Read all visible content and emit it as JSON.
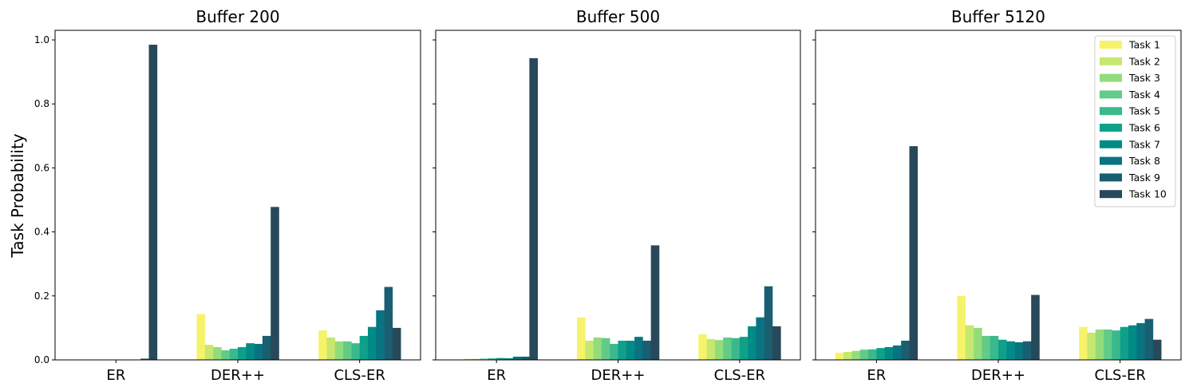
{
  "figure": {
    "ylabel": "Task Probability",
    "legend": {
      "placement": "upper-right of Buffer 5120 panel",
      "entries": [
        "Task 1",
        "Task 2",
        "Task 3",
        "Task 4",
        "Task 5",
        "Task 6",
        "Task 7",
        "Task 8",
        "Task 9",
        "Task 10"
      ]
    },
    "colors": [
      "#f6f36a",
      "#c6e86e",
      "#93dc7b",
      "#62cb87",
      "#3ab98c",
      "#0fa08a",
      "#008b86",
      "#097381",
      "#195e71",
      "#27495a"
    ]
  },
  "chart_data": [
    {
      "type": "bar",
      "title": "Buffer 200",
      "categories": [
        "ER",
        "DER++",
        "CLS-ER"
      ],
      "ylabel": "Task Probability",
      "ylim": [
        0,
        1.03
      ],
      "yticks": [
        "0.0",
        "0.2",
        "0.4",
        "0.6",
        "0.8",
        "1.0"
      ],
      "series": [
        {
          "name": "Task 1",
          "values": [
            0.0,
            0.143,
            0.092
          ]
        },
        {
          "name": "Task 2",
          "values": [
            0.0,
            0.047,
            0.07
          ]
        },
        {
          "name": "Task 3",
          "values": [
            0.0,
            0.04,
            0.058
          ]
        },
        {
          "name": "Task 4",
          "values": [
            0.0,
            0.03,
            0.058
          ]
        },
        {
          "name": "Task 5",
          "values": [
            0.0,
            0.035,
            0.052
          ]
        },
        {
          "name": "Task 6",
          "values": [
            0.0,
            0.04,
            0.075
          ]
        },
        {
          "name": "Task 7",
          "values": [
            0.0,
            0.052,
            0.103
          ]
        },
        {
          "name": "Task 8",
          "values": [
            0.0,
            0.05,
            0.155
          ]
        },
        {
          "name": "Task 9",
          "values": [
            0.004,
            0.075,
            0.228
          ]
        },
        {
          "name": "Task 10",
          "values": [
            0.985,
            0.478,
            0.1
          ]
        }
      ]
    },
    {
      "type": "bar",
      "title": "Buffer 500",
      "categories": [
        "ER",
        "DER++",
        "CLS-ER"
      ],
      "ylim": [
        0,
        1.03
      ],
      "series": [
        {
          "name": "Task 1",
          "values": [
            0.001,
            0.133,
            0.08
          ]
        },
        {
          "name": "Task 2",
          "values": [
            0.003,
            0.06,
            0.065
          ]
        },
        {
          "name": "Task 3",
          "values": [
            0.003,
            0.07,
            0.062
          ]
        },
        {
          "name": "Task 4",
          "values": [
            0.004,
            0.068,
            0.07
          ]
        },
        {
          "name": "Task 5",
          "values": [
            0.005,
            0.05,
            0.068
          ]
        },
        {
          "name": "Task 6",
          "values": [
            0.006,
            0.06,
            0.072
          ]
        },
        {
          "name": "Task 7",
          "values": [
            0.005,
            0.06,
            0.105
          ]
        },
        {
          "name": "Task 8",
          "values": [
            0.01,
            0.072,
            0.133
          ]
        },
        {
          "name": "Task 9",
          "values": [
            0.01,
            0.06,
            0.23
          ]
        },
        {
          "name": "Task 10",
          "values": [
            0.943,
            0.358,
            0.105
          ]
        }
      ]
    },
    {
      "type": "bar",
      "title": "Buffer 5120",
      "categories": [
        "ER",
        "DER++",
        "CLS-ER"
      ],
      "ylim": [
        0,
        1.03
      ],
      "series": [
        {
          "name": "Task 1",
          "values": [
            0.022,
            0.2,
            0.103
          ]
        },
        {
          "name": "Task 2",
          "values": [
            0.025,
            0.108,
            0.085
          ]
        },
        {
          "name": "Task 3",
          "values": [
            0.028,
            0.1,
            0.095
          ]
        },
        {
          "name": "Task 4",
          "values": [
            0.032,
            0.075,
            0.095
          ]
        },
        {
          "name": "Task 5",
          "values": [
            0.033,
            0.075,
            0.092
          ]
        },
        {
          "name": "Task 6",
          "values": [
            0.037,
            0.063,
            0.103
          ]
        },
        {
          "name": "Task 7",
          "values": [
            0.04,
            0.058,
            0.108
          ]
        },
        {
          "name": "Task 8",
          "values": [
            0.045,
            0.055,
            0.115
          ]
        },
        {
          "name": "Task 9",
          "values": [
            0.06,
            0.058,
            0.128
          ]
        },
        {
          "name": "Task 10",
          "values": [
            0.668,
            0.203,
            0.063
          ]
        }
      ]
    }
  ]
}
